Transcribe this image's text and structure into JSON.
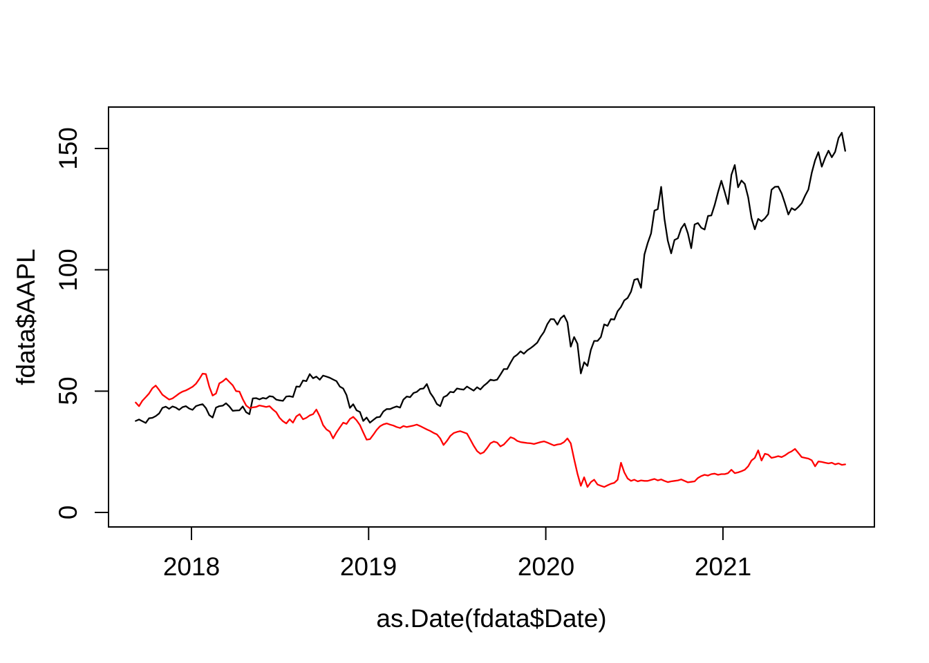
{
  "figure": {
    "background": "#ffffff",
    "frame_color": "#000000"
  },
  "chart_data": {
    "type": "line",
    "title": "",
    "xlabel": "as.Date(fdata$Date)",
    "ylabel": "fdata$AAPL",
    "x_tick_labels": [
      "2018",
      "2019",
      "2020",
      "2021"
    ],
    "x_tick_years": [
      2018,
      2019,
      2020,
      2021
    ],
    "y_tick_labels": [
      "0",
      "50",
      "100",
      "150"
    ],
    "y_ticks": [
      0,
      50,
      100,
      150
    ],
    "xlim_years": [
      2017.53,
      2021.86
    ],
    "ylim": [
      -6,
      167
    ],
    "grid": false,
    "legend": "none",
    "x_start_year": 2017.685,
    "x_step_years": 0.018892,
    "series": [
      {
        "name": "black-line",
        "color": "#000000",
        "values": [
          37.7,
          38.3,
          37.6,
          36.9,
          38.8,
          39.0,
          39.7,
          40.8,
          43.1,
          43.6,
          42.7,
          43.7,
          43.2,
          42.3,
          43.4,
          43.8,
          42.8,
          42.3,
          43.8,
          44.3,
          44.6,
          43.0,
          40.1,
          39.1,
          43.2,
          43.8,
          44.0,
          45.0,
          43.7,
          41.9,
          42.0,
          42.1,
          43.7,
          41.3,
          40.5,
          47.0,
          47.1,
          46.6,
          47.2,
          46.9,
          47.9,
          47.7,
          46.5,
          46.2,
          46.0,
          47.8,
          47.9,
          47.6,
          51.9,
          51.8,
          54.4,
          54.1,
          57.0,
          55.3,
          56.0,
          54.7,
          56.4,
          56.0,
          55.5,
          54.8,
          54.1,
          51.9,
          51.1,
          48.4,
          43.1,
          44.6,
          42.1,
          41.4,
          37.7,
          39.1,
          37.0,
          38.1,
          39.2,
          39.4,
          41.6,
          42.6,
          42.6,
          43.2,
          43.7,
          43.2,
          46.5,
          47.8,
          47.5,
          49.2,
          49.7,
          50.9,
          51.1,
          52.9,
          49.3,
          47.3,
          44.7,
          43.8,
          47.5,
          48.2,
          49.7,
          49.5,
          51.1,
          50.8,
          50.6,
          51.9,
          51.0,
          50.2,
          51.6,
          50.7,
          52.2,
          53.3,
          54.7,
          54.4,
          54.7,
          56.8,
          59.1,
          59.1,
          61.7,
          64.0,
          65.0,
          66.4,
          65.4,
          66.8,
          67.7,
          68.8,
          70.0,
          72.4,
          74.4,
          77.6,
          79.7,
          79.6,
          77.4,
          80.0,
          81.2,
          78.3,
          68.3,
          72.3,
          69.5,
          57.3,
          61.9,
          60.4,
          67.0,
          70.7,
          70.7,
          72.3,
          77.5,
          76.9,
          79.7,
          79.5,
          82.9,
          84.7,
          87.4,
          88.4,
          91.0,
          95.9,
          96.3,
          92.6,
          106.3,
          111.1,
          115.0,
          124.4,
          125.0,
          134.2,
          120.9,
          112.0,
          106.8,
          112.3,
          113.0,
          117.0,
          119.0,
          115.0,
          108.9,
          118.7,
          119.3,
          117.3,
          116.6,
          122.2,
          122.4,
          126.7,
          132.0,
          136.7,
          132.0,
          127.1,
          139.1,
          143.2,
          134.0,
          136.8,
          135.4,
          129.9,
          121.3,
          116.7,
          121.0,
          120.0,
          121.2,
          123.0,
          133.0,
          134.2,
          134.3,
          131.5,
          127.4,
          122.8,
          125.4,
          124.6,
          125.9,
          127.4,
          130.5,
          133.1,
          140.0,
          145.1,
          148.5,
          142.5,
          146.1,
          149.1,
          146.4,
          148.6,
          154.3,
          156.5,
          149.0
        ]
      },
      {
        "name": "red-line",
        "color": "#ff0000",
        "values": [
          45.3,
          43.8,
          46.0,
          47.5,
          49.0,
          51.2,
          52.3,
          50.5,
          48.5,
          47.5,
          46.5,
          47.0,
          48.0,
          49.0,
          49.8,
          50.3,
          51.0,
          51.8,
          53.0,
          55.0,
          57.2,
          57.0,
          51.8,
          48.2,
          49.0,
          53.2,
          54.0,
          55.2,
          53.8,
          52.4,
          50.0,
          49.8,
          46.7,
          44.1,
          43.0,
          43.3,
          43.5,
          44.1,
          43.8,
          43.5,
          43.8,
          42.4,
          41.3,
          39.0,
          37.6,
          36.7,
          38.4,
          37.0,
          39.6,
          40.5,
          38.4,
          39.0,
          40.0,
          40.5,
          42.4,
          39.6,
          36.0,
          34.2,
          33.3,
          30.5,
          33.0,
          35.0,
          37.0,
          36.5,
          38.5,
          39.4,
          38.0,
          36.0,
          33.0,
          30.0,
          30.2,
          32.0,
          34.0,
          35.5,
          36.3,
          36.7,
          36.2,
          35.8,
          35.2,
          34.8,
          35.6,
          35.2,
          35.5,
          35.8,
          36.2,
          35.6,
          34.9,
          34.2,
          33.6,
          32.8,
          32.2,
          30.5,
          27.8,
          29.5,
          31.5,
          32.7,
          33.2,
          33.5,
          33.0,
          32.5,
          30.0,
          27.5,
          25.3,
          24.2,
          24.8,
          26.5,
          28.5,
          29.2,
          28.8,
          27.2,
          28.0,
          29.5,
          31.0,
          30.5,
          29.5,
          29.0,
          28.8,
          28.6,
          28.5,
          28.2,
          28.6,
          29.0,
          29.3,
          28.8,
          28.2,
          27.6,
          28.0,
          28.2,
          29.0,
          30.5,
          28.5,
          22.0,
          16.0,
          11.0,
          14.5,
          10.5,
          12.5,
          13.5,
          11.5,
          11.0,
          10.5,
          11.2,
          11.8,
          12.2,
          13.5,
          20.5,
          16.5,
          14.0,
          13.0,
          13.5,
          12.8,
          13.2,
          13.0,
          13.0,
          13.4,
          13.8,
          13.2,
          13.6,
          13.0,
          12.5,
          12.8,
          13.0,
          13.2,
          13.6,
          13.0,
          12.4,
          12.6,
          12.8,
          14.2,
          15.0,
          15.5,
          15.2,
          15.8,
          16.0,
          15.5,
          15.8,
          15.8,
          16.2,
          17.6,
          16.2,
          16.5,
          17.0,
          17.6,
          19.0,
          21.4,
          22.5,
          25.6,
          21.4,
          24.2,
          23.8,
          22.5,
          22.8,
          23.2,
          22.8,
          23.5,
          24.5,
          25.2,
          26.2,
          24.5,
          22.8,
          22.5,
          22.2,
          21.5,
          19.0,
          21.0,
          20.8,
          20.5,
          20.2,
          20.5,
          19.8,
          20.2,
          19.6,
          19.8
        ]
      }
    ]
  }
}
